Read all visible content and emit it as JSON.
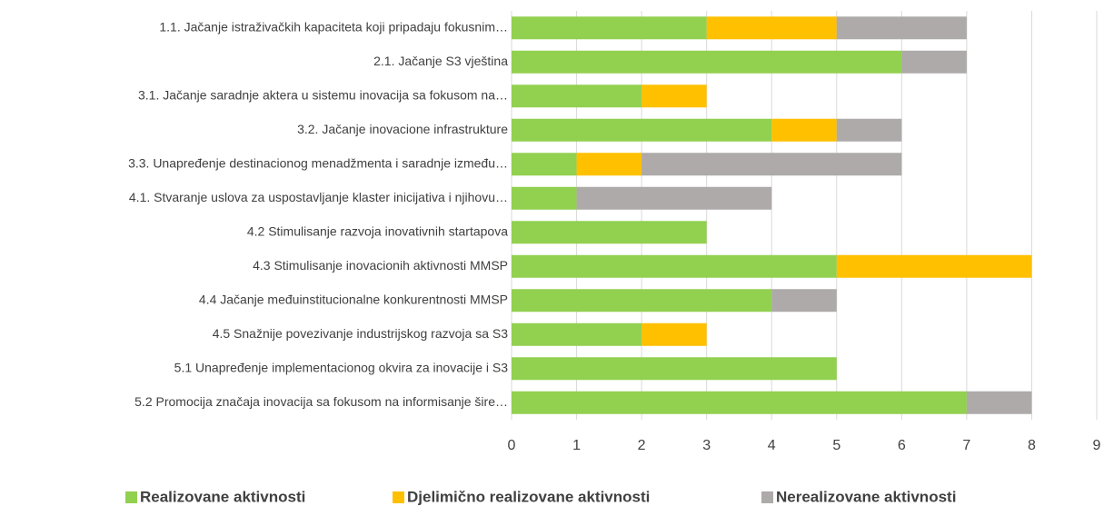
{
  "chart_data": {
    "type": "stacked-bar-horizontal",
    "categories": [
      "1.1. Jačanje istraživačkih kapaciteta koji pripadaju fokusnim…",
      "2.1. Jačanje S3 vještina",
      "3.1. Jačanje saradnje aktera u sistemu inovacija sa fokusom na…",
      "3.2. Jačanje inovacione infrastrukture",
      "3.3. Unapređenje destinacionog menadžmenta i saradnje između…",
      "4.1. Stvaranje uslova za uspostavljanje klaster inicijativa i njihovu…",
      "4.2 Stimulisanje razvoja inovativnih startapova",
      "4.3 Stimulisanje inovacionih aktivnosti MMSP",
      "4.4 Jačanje međuinstitucionalne konkurentnosti MMSP",
      "4.5 Snažnije povezivanje industrijskog razvoja sa S3",
      "5.1 Unapređenje implementacionog okvira za inovacije i S3",
      "5.2 Promocija značaja inovacija sa fokusom na informisanje šire…"
    ],
    "series": [
      {
        "name": "Realizovane aktivnosti",
        "color": "#92d050",
        "values": [
          3,
          6,
          2,
          4,
          1,
          1,
          3,
          5,
          4,
          2,
          5,
          7
        ]
      },
      {
        "name": "Djelimično realizovane aktivnosti",
        "color": "#ffc000",
        "values": [
          2,
          0,
          1,
          1,
          1,
          0,
          0,
          3,
          0,
          1,
          0,
          0
        ]
      },
      {
        "name": "Nerealizovane aktivnosti",
        "color": "#aeaaaa",
        "values": [
          2,
          1,
          0,
          1,
          4,
          3,
          0,
          0,
          1,
          0,
          0,
          1
        ]
      }
    ],
    "xlim": [
      0,
      9
    ],
    "xticks": [
      0,
      1,
      2,
      3,
      4,
      5,
      6,
      7,
      8,
      9
    ],
    "grid": true,
    "legend": "bottom"
  }
}
